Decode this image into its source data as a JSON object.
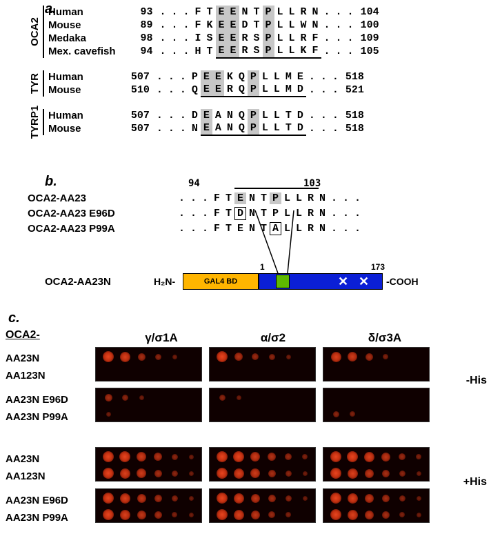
{
  "panel_a": {
    "label": "a.",
    "blocks": [
      {
        "gene": "OCA2",
        "rows": [
          {
            "species": "Human",
            "start": 93,
            "seq": [
              ".",
              ".",
              ".",
              "F",
              "T",
              "E",
              "E",
              "N",
              "T",
              "P",
              "L",
              "L",
              "R",
              "N",
              ".",
              ".",
              "."
            ],
            "end": 104
          },
          {
            "species": "Mouse",
            "start": 89,
            "seq": [
              ".",
              ".",
              ".",
              "F",
              "K",
              "E",
              "E",
              "D",
              "T",
              "P",
              "L",
              "L",
              "W",
              "N",
              ".",
              ".",
              "."
            ],
            "end": 100
          },
          {
            "species": "Medaka",
            "start": 98,
            "seq": [
              ".",
              ".",
              ".",
              "I",
              "S",
              "E",
              "E",
              "R",
              "S",
              "P",
              "L",
              "L",
              "R",
              "F",
              ".",
              ".",
              "."
            ],
            "end": 109
          },
          {
            "species": "Mex. cavefish",
            "start": 94,
            "seq": [
              ".",
              ".",
              ".",
              "H",
              "T",
              "E",
              "E",
              "R",
              "S",
              "P",
              "L",
              "L",
              "K",
              "F",
              ".",
              ".",
              "."
            ],
            "end": 105
          }
        ],
        "hl_cols": [
          5,
          6,
          9
        ],
        "ul_start": 5,
        "ul_end": 13
      },
      {
        "gene": "TYR",
        "rows": [
          {
            "species": "Human",
            "start": 507,
            "seq": [
              ".",
              ".",
              ".",
              "P",
              "E",
              "E",
              "K",
              "Q",
              "P",
              "L",
              "L",
              "M",
              "E",
              ".",
              ".",
              "."
            ],
            "end": 518
          },
          {
            "species": "Mouse",
            "start": 510,
            "seq": [
              ".",
              ".",
              ".",
              "Q",
              "E",
              "E",
              "R",
              "Q",
              "P",
              "L",
              "L",
              "M",
              "D",
              ".",
              ".",
              "."
            ],
            "end": 521
          }
        ],
        "hl_cols": [
          4,
          5,
          8
        ],
        "ul_start": 4,
        "ul_end": 12
      },
      {
        "gene": "TYRP1",
        "rows": [
          {
            "species": "Human",
            "start": 507,
            "seq": [
              ".",
              ".",
              ".",
              "D",
              "E",
              "A",
              "N",
              "Q",
              "P",
              "L",
              "L",
              "T",
              "D",
              ".",
              ".",
              "."
            ],
            "end": 518
          },
          {
            "species": "Mouse",
            "start": 507,
            "seq": [
              ".",
              ".",
              ".",
              "N",
              "E",
              "A",
              "N",
              "Q",
              "P",
              "L",
              "L",
              "T",
              "D",
              ".",
              ".",
              "."
            ],
            "end": 518
          }
        ],
        "hl_cols": [
          4,
          8
        ],
        "ul_start": 4,
        "ul_end": 12
      }
    ]
  },
  "panel_b": {
    "label": "b.",
    "num_left": "94",
    "num_right": "103",
    "rows": [
      {
        "label": "OCA2-AA23",
        "seq": [
          ".",
          ".",
          ".",
          "F",
          "T",
          "E",
          "N",
          "T",
          "P",
          "L",
          "L",
          "R",
          "N",
          ".",
          ".",
          "."
        ],
        "hl": [
          5,
          8
        ],
        "box": []
      },
      {
        "label": "OCA2-AA23 E96D",
        "seq": [
          ".",
          ".",
          ".",
          "F",
          "T",
          "D",
          "N",
          "T",
          "P",
          "L",
          "L",
          "R",
          "N",
          ".",
          ".",
          "."
        ],
        "hl": [],
        "box": [
          5
        ]
      },
      {
        "label": "OCA2-AA23 P99A",
        "seq": [
          ".",
          ".",
          ".",
          "F",
          "T",
          "E",
          "N",
          "T",
          "A",
          "L",
          "L",
          "R",
          "N",
          ".",
          ".",
          "."
        ],
        "hl": [],
        "box": [
          8
        ]
      }
    ],
    "line_start": 5,
    "line_end": 12,
    "diagram": {
      "label": "OCA2-AA23N",
      "nh2": "H₂N-",
      "cooh": "-COOH",
      "gal4": "GAL4 BD",
      "num1": "1",
      "num173": "173",
      "colors": {
        "gal4": "#ffb500",
        "blue": "#0b1fd6",
        "green": "#5fb900"
      }
    }
  },
  "panel_c": {
    "label": "c.",
    "header": "OCA2-",
    "cols": [
      "γ/σ1A",
      "α/σ2",
      "δ/σ3A"
    ],
    "row_labels_top": [
      "AA23N",
      "AA123N"
    ],
    "row_labels_mid": [
      "AA23N E96D",
      "AA23N P99A"
    ],
    "row_labels_bot1": [
      "AA23N",
      "AA123N"
    ],
    "row_labels_bot2": [
      "AA23N E96D",
      "AA23N P99A"
    ],
    "side_minus": "-His",
    "side_plus": "+His",
    "blot_bg": "#0f0000",
    "dot_color": "#e84520"
  }
}
